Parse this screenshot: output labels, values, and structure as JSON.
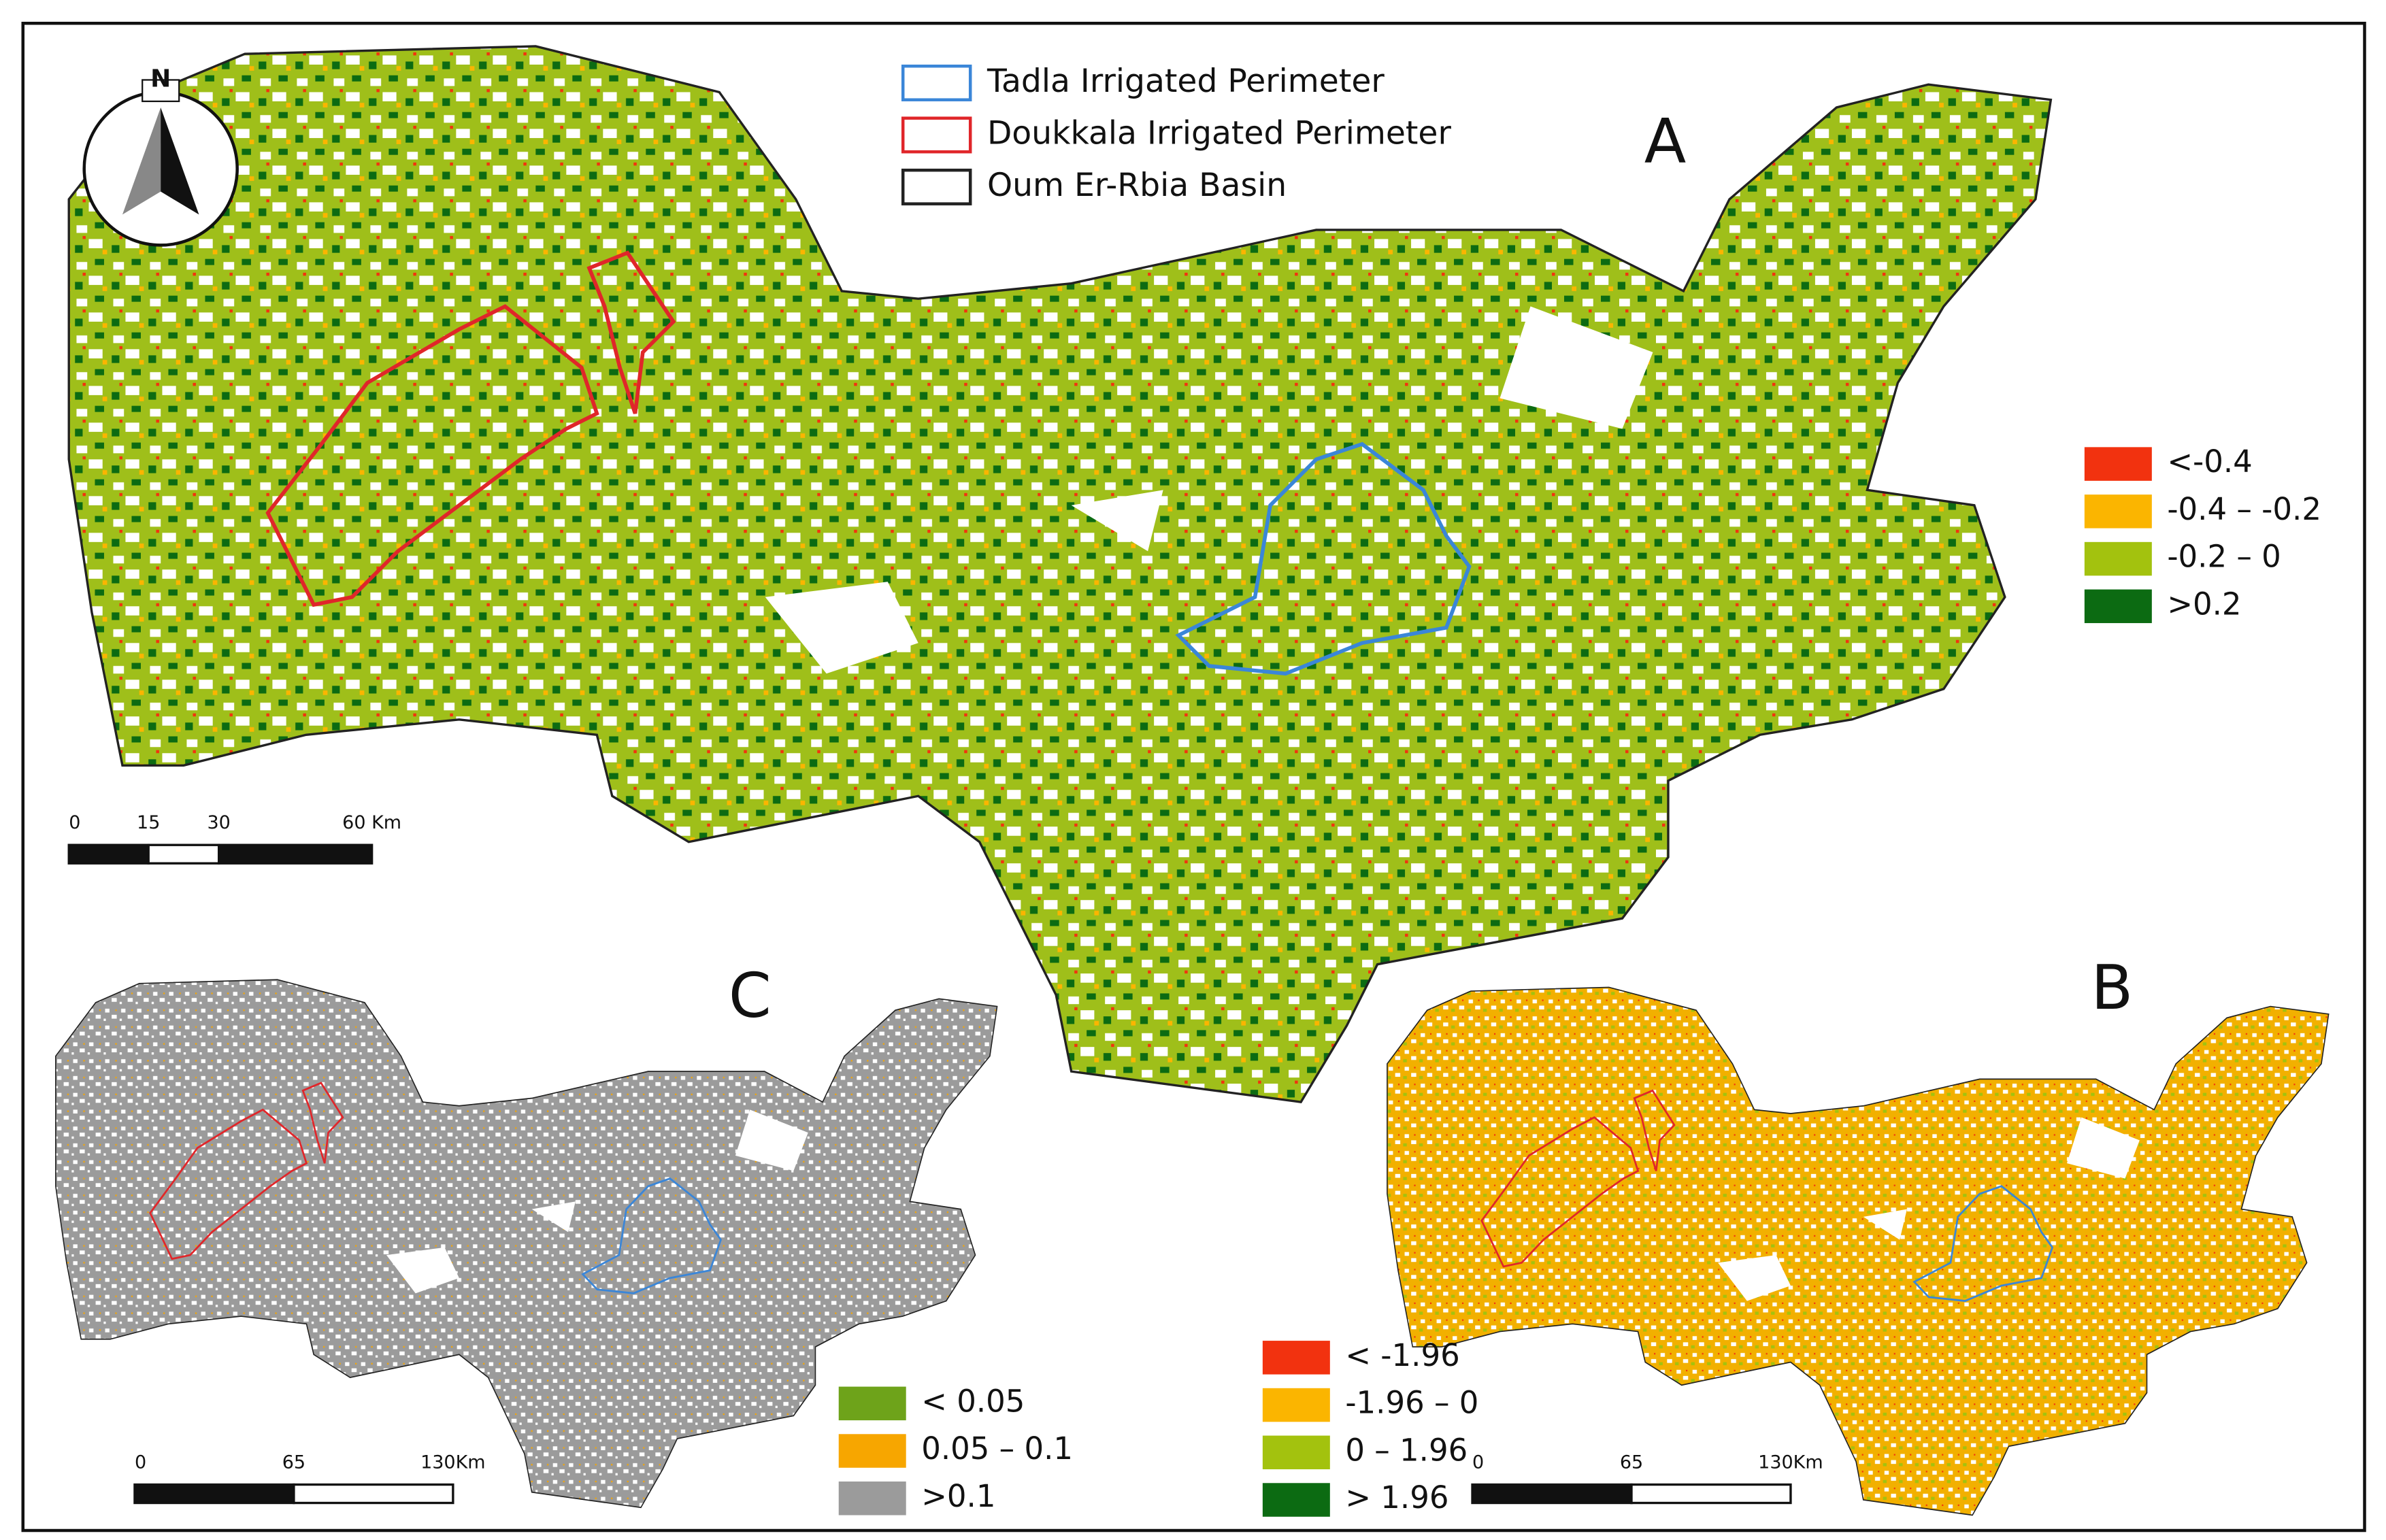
{
  "north": "N",
  "legend": {
    "items": [
      {
        "label": "Tadla Irrigated Perimeter",
        "color": "#3a86d8"
      },
      {
        "label": "Doukkala Irrigated Perimeter",
        "color": "#e0262a"
      },
      {
        "label": "Oum Er-Rbia Basin",
        "color": "#222222"
      }
    ]
  },
  "panels": [
    {
      "label": "A",
      "classes": [
        {
          "label": "<-0.4",
          "color": "#f2320f"
        },
        {
          "label": "-0.4 – -0.2",
          "color": "#fbb500"
        },
        {
          "label": "-0.2 – 0",
          "color": "#a3c20e"
        },
        {
          "label": ">0.2",
          "color": "#0c6b12"
        }
      ],
      "scale_bar": [
        "0",
        "15",
        "30",
        "60 Km"
      ]
    },
    {
      "label": "B",
      "classes": [
        {
          "label": "< -1.96",
          "color": "#f2320f"
        },
        {
          "label": "-1.96 – 0",
          "color": "#fbb500"
        },
        {
          "label": "0 – 1.96",
          "color": "#a3c20e"
        },
        {
          "label": "> 1.96",
          "color": "#0c6b12"
        }
      ],
      "scale_bar": [
        "0",
        "65",
        "130Km"
      ]
    },
    {
      "label": "C",
      "classes": [
        {
          "label": "< 0.05",
          "color": "#6ea31a"
        },
        {
          "label": "0.05 – 0.1",
          "color": "#f7a600"
        },
        {
          "label": ">0.1",
          "color": "#9b9b9b"
        }
      ],
      "scale_bar": [
        "0",
        "65",
        "130Km"
      ]
    }
  ]
}
